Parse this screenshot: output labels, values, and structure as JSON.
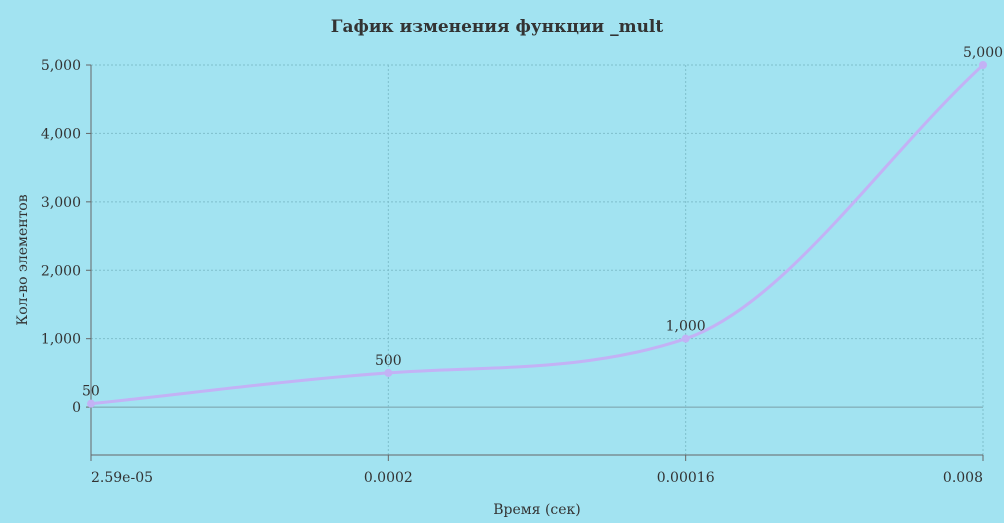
{
  "colors": {
    "background": "#a2e3f1",
    "series": "#c3b2f5",
    "grid": "#7fbfcc",
    "axis": "#666666",
    "text": "#333333"
  },
  "chart_data": {
    "type": "line",
    "title": "Гафик изменения функции _mult",
    "xlabel": "Время (сек)",
    "ylabel": "Кол-во элементов",
    "categories": [
      "2.59e-05",
      "0.0002",
      "0.00016",
      "0.008"
    ],
    "series": [
      {
        "values": [
          50,
          500,
          1000,
          5000
        ],
        "data_labels": [
          "50",
          "500",
          "1,000",
          "5,000"
        ]
      }
    ],
    "y_ticks": [
      0,
      1000,
      2000,
      3000,
      4000,
      5000
    ],
    "y_tick_labels": [
      "0",
      "1,000",
      "2,000",
      "3,000",
      "4,000",
      "5,000"
    ],
    "ylim": [
      -700,
      5000
    ],
    "grid": true,
    "smooth": true,
    "legend": "none"
  }
}
